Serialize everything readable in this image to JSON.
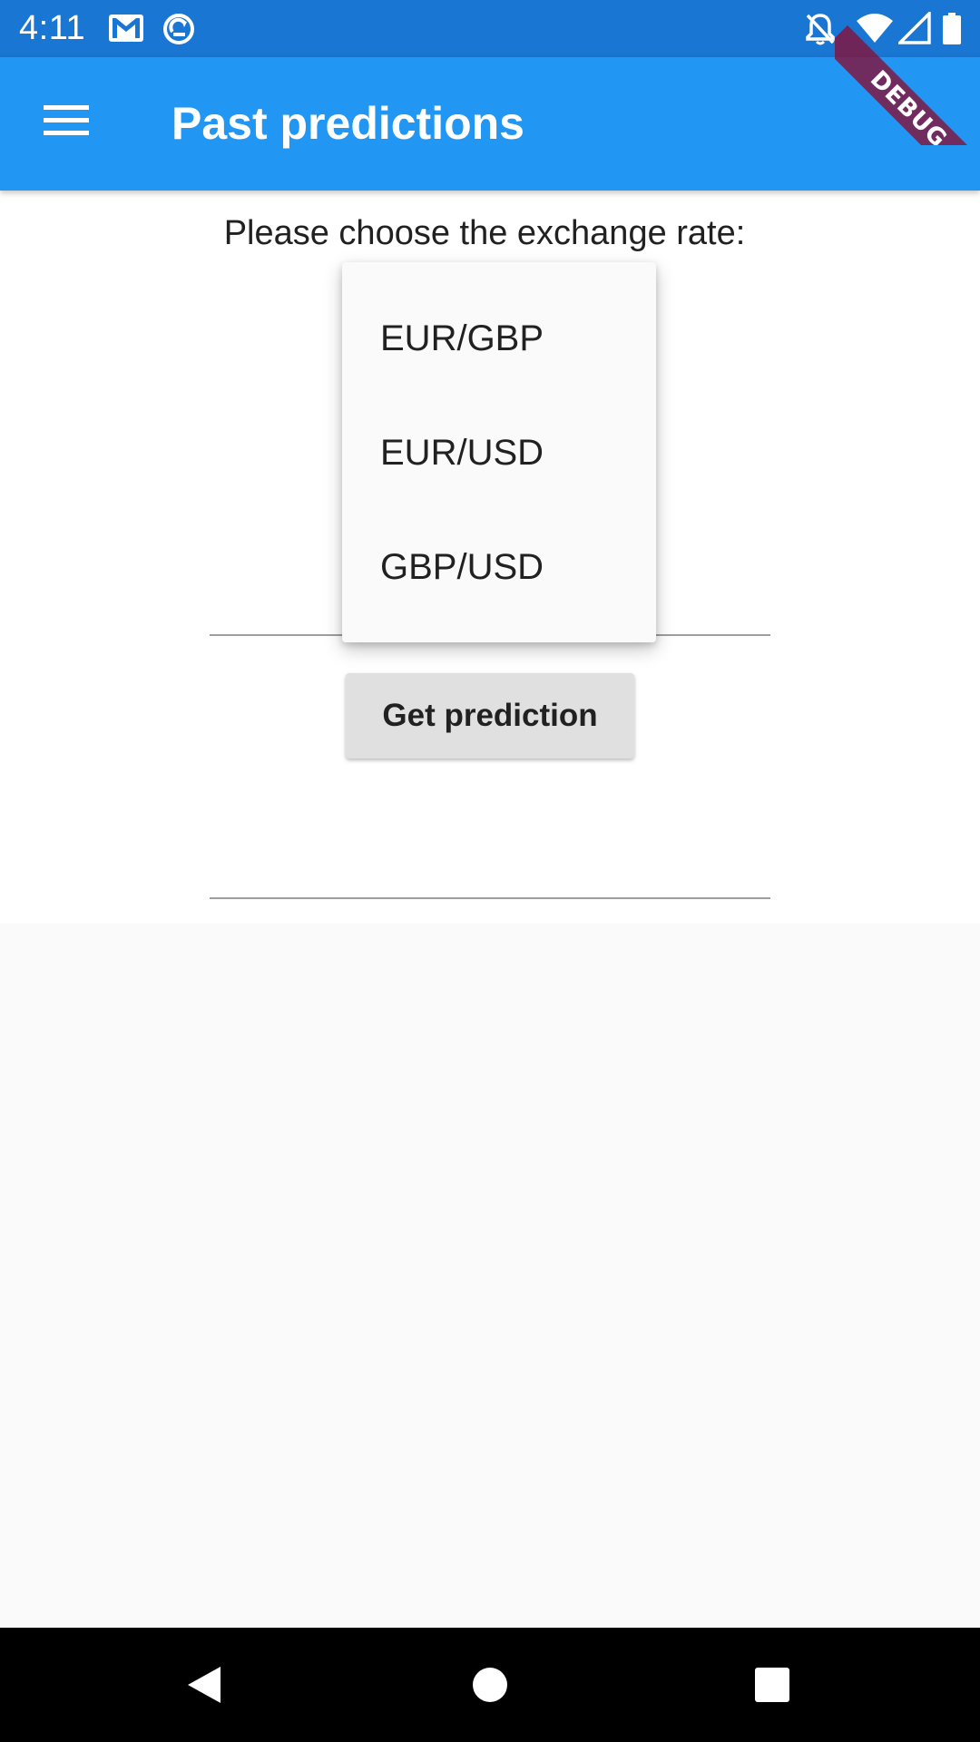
{
  "status_bar": {
    "time": "4:11",
    "icons": [
      "gmail-icon",
      "sync-icon",
      "notifications-off-icon",
      "wifi-icon",
      "signal-icon",
      "battery-icon"
    ]
  },
  "debug_banner": {
    "label": "DEBUG"
  },
  "app_bar": {
    "menu_icon": "menu-icon",
    "title": "Past predictions"
  },
  "content": {
    "prompt": "Please choose the exchange rate:",
    "predict_button_label": "Get prediction"
  },
  "dropdown": {
    "options": [
      "EUR/GBP",
      "EUR/USD",
      "GBP/USD"
    ]
  },
  "nav_bar": {
    "icons": [
      "back-icon",
      "home-icon",
      "recents-icon"
    ]
  },
  "colors": {
    "status_bar": "#1976d2",
    "app_bar": "#2196f3",
    "debug_banner": "#880e34",
    "button": "#e0e0e0",
    "background": "#fafafa"
  }
}
